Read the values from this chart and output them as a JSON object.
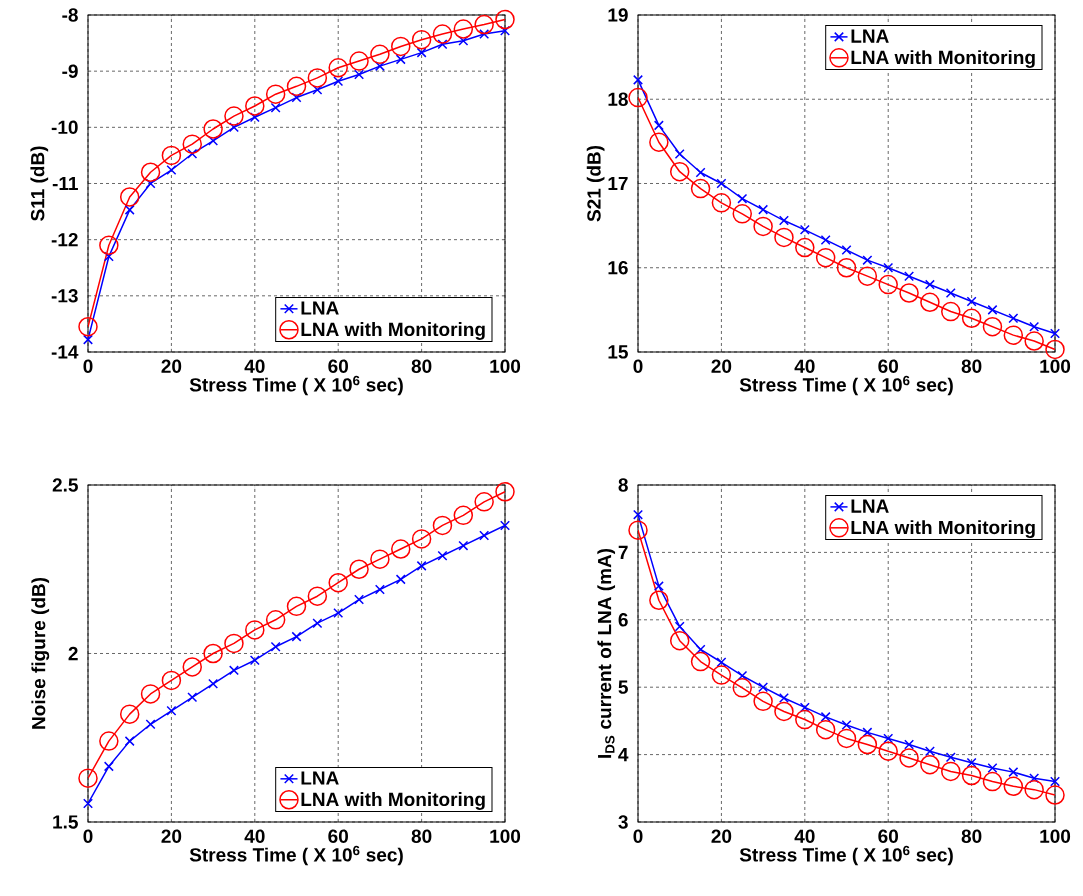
{
  "chart_data": [
    {
      "type": "line",
      "xlabel": "Stress Time ( X 10$^{6}$ sec)",
      "ylabel": "S11 (dB)",
      "x": [
        0,
        5,
        10,
        15,
        20,
        25,
        30,
        35,
        40,
        45,
        50,
        55,
        60,
        65,
        70,
        75,
        80,
        85,
        90,
        95,
        100
      ],
      "xlim": [
        0,
        100
      ],
      "xticks": [
        0,
        20,
        40,
        60,
        80,
        100
      ],
      "ylim": [
        -14,
        -8
      ],
      "yticks": [
        -14,
        -13,
        -12,
        -11,
        -10,
        -9,
        -8
      ],
      "grid": true,
      "legend": "bottom right",
      "series": [
        {
          "name": "LNA",
          "color": "#0000ff",
          "marker": "cross",
          "values": [
            -13.78,
            -12.3,
            -11.47,
            -11.0,
            -10.76,
            -10.47,
            -10.24,
            -10.0,
            -9.82,
            -9.65,
            -9.47,
            -9.33,
            -9.18,
            -9.06,
            -8.91,
            -8.79,
            -8.67,
            -8.52,
            -8.46,
            -8.34,
            -8.28
          ]
        },
        {
          "name": "LNA with Monitoring",
          "color": "#ff0000",
          "marker": "circle",
          "values": [
            -13.55,
            -12.1,
            -11.24,
            -10.8,
            -10.5,
            -10.3,
            -10.03,
            -9.8,
            -9.62,
            -9.41,
            -9.27,
            -9.12,
            -8.94,
            -8.82,
            -8.7,
            -8.56,
            -8.44,
            -8.34,
            -8.25,
            -8.17,
            -8.08
          ]
        }
      ]
    },
    {
      "type": "line",
      "xlabel": "Stress Time ( X 10$^{6}$ sec)",
      "ylabel": "S21 (dB)",
      "x": [
        0,
        5,
        10,
        15,
        20,
        25,
        30,
        35,
        40,
        45,
        50,
        55,
        60,
        65,
        70,
        75,
        80,
        85,
        90,
        95,
        100
      ],
      "xlim": [
        0,
        100
      ],
      "xticks": [
        0,
        20,
        40,
        60,
        80,
        100
      ],
      "ylim": [
        15,
        19
      ],
      "yticks": [
        15,
        16,
        17,
        18,
        19
      ],
      "grid": true,
      "legend": "top right",
      "series": [
        {
          "name": "LNA",
          "color": "#0000ff",
          "marker": "cross",
          "values": [
            18.23,
            17.69,
            17.35,
            17.13,
            17.0,
            16.82,
            16.69,
            16.56,
            16.45,
            16.33,
            16.21,
            16.09,
            16.0,
            15.9,
            15.8,
            15.7,
            15.6,
            15.5,
            15.4,
            15.3,
            15.22
          ]
        },
        {
          "name": "LNA with Monitoring",
          "color": "#ff0000",
          "marker": "circle",
          "values": [
            18.02,
            17.49,
            17.14,
            16.94,
            16.77,
            16.64,
            16.49,
            16.36,
            16.24,
            16.12,
            16.0,
            15.9,
            15.8,
            15.7,
            15.59,
            15.48,
            15.4,
            15.3,
            15.2,
            15.13,
            15.03
          ]
        }
      ]
    },
    {
      "type": "line",
      "xlabel": "Stress Time ( X 10$^{6}$ sec)",
      "ylabel": "Noise figure (dB)",
      "x": [
        0,
        5,
        10,
        15,
        20,
        25,
        30,
        35,
        40,
        45,
        50,
        55,
        60,
        65,
        70,
        75,
        80,
        85,
        90,
        95,
        100
      ],
      "xlim": [
        0,
        100
      ],
      "xticks": [
        0,
        20,
        40,
        60,
        80,
        100
      ],
      "ylim": [
        1.5,
        2.5
      ],
      "yticks": [
        1.5,
        2,
        2.5
      ],
      "grid": true,
      "legend": "bottom right",
      "series": [
        {
          "name": "LNA",
          "color": "#0000ff",
          "marker": "cross",
          "values": [
            1.555,
            1.665,
            1.74,
            1.79,
            1.83,
            1.87,
            1.91,
            1.95,
            1.98,
            2.02,
            2.05,
            2.09,
            2.12,
            2.16,
            2.19,
            2.22,
            2.26,
            2.29,
            2.32,
            2.35,
            2.38
          ]
        },
        {
          "name": "LNA with Monitoring",
          "color": "#ff0000",
          "marker": "circle",
          "values": [
            1.63,
            1.74,
            1.82,
            1.88,
            1.92,
            1.96,
            2.0,
            2.03,
            2.07,
            2.1,
            2.14,
            2.17,
            2.21,
            2.25,
            2.28,
            2.31,
            2.34,
            2.38,
            2.41,
            2.45,
            2.48
          ]
        }
      ]
    },
    {
      "type": "line",
      "xlabel": "Stress Time ( X 10$^{6}$ sec)",
      "ylabel": "I$_{DS}$ current of LNA (mA)",
      "x": [
        0,
        5,
        10,
        15,
        20,
        25,
        30,
        35,
        40,
        45,
        50,
        55,
        60,
        65,
        70,
        75,
        80,
        85,
        90,
        95,
        100
      ],
      "xlim": [
        0,
        100
      ],
      "xticks": [
        0,
        20,
        40,
        60,
        80,
        100
      ],
      "ylim": [
        3,
        8
      ],
      "yticks": [
        3,
        4,
        5,
        6,
        7,
        8
      ],
      "grid": true,
      "legend": "top right",
      "series": [
        {
          "name": "LNA",
          "color": "#0000ff",
          "marker": "cross",
          "values": [
            7.56,
            6.5,
            5.9,
            5.56,
            5.37,
            5.17,
            5.0,
            4.84,
            4.7,
            4.56,
            4.44,
            4.33,
            4.24,
            4.15,
            4.05,
            3.96,
            3.88,
            3.8,
            3.74,
            3.65,
            3.6
          ]
        },
        {
          "name": "LNA with Monitoring",
          "color": "#ff0000",
          "marker": "circle",
          "values": [
            7.33,
            6.29,
            5.69,
            5.38,
            5.18,
            4.99,
            4.79,
            4.64,
            4.52,
            4.37,
            4.24,
            4.15,
            4.05,
            3.95,
            3.85,
            3.75,
            3.69,
            3.6,
            3.53,
            3.48,
            3.4
          ]
        }
      ]
    }
  ]
}
